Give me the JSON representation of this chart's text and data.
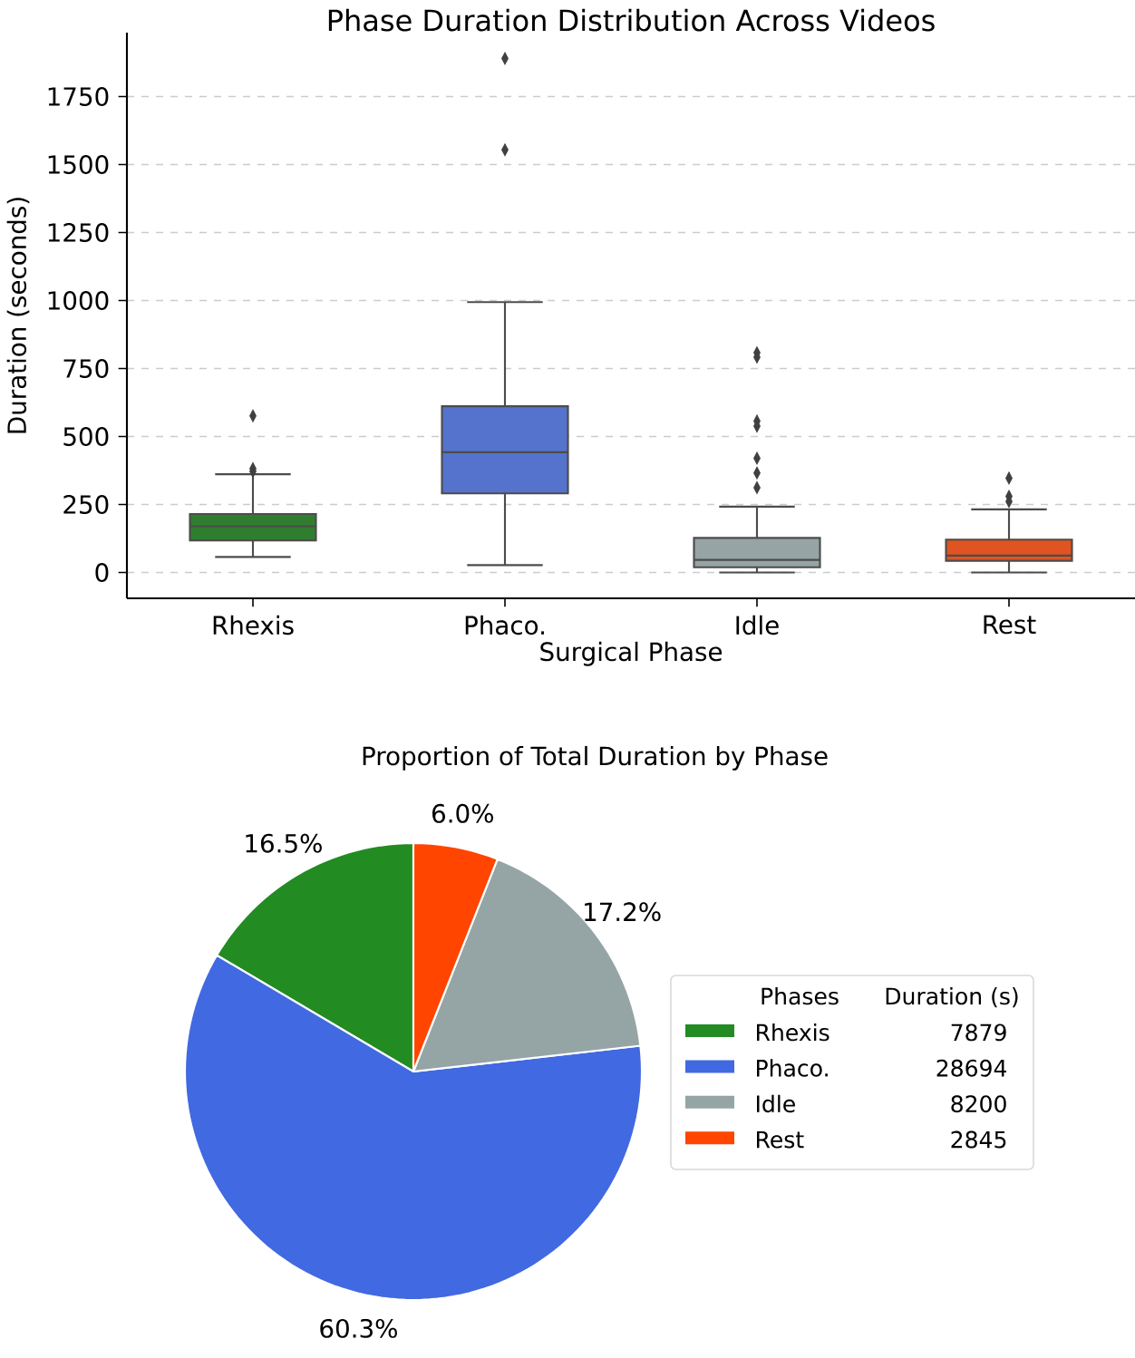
{
  "chart_data": [
    {
      "type": "box",
      "title": "Phase Duration Distribution Across Videos",
      "xlabel": "Surgical Phase",
      "ylabel": "Duration (seconds)",
      "categories": [
        "Rhexis",
        "Phaco.",
        "Idle",
        "Rest"
      ],
      "colors": [
        "#2f7e2f",
        "#5573cd",
        "#97a4a5",
        "#df5420"
      ],
      "boxes": [
        {
          "low": 57,
          "q1": 118,
          "median": 170,
          "q3": 215,
          "high": 361,
          "outliers": [
            576,
            382,
            372
          ]
        },
        {
          "low": 27,
          "q1": 291,
          "median": 442,
          "q3": 611,
          "high": 994,
          "outliers": [
            1890,
            1554
          ]
        },
        {
          "low": 0,
          "q1": 19,
          "median": 46,
          "q3": 127,
          "high": 242,
          "outliers": [
            808,
            792,
            557,
            538,
            420,
            366,
            312
          ]
        },
        {
          "low": 0,
          "q1": 43,
          "median": 62,
          "q3": 121,
          "high": 232,
          "outliers": [
            347,
            280,
            261
          ]
        }
      ],
      "ylim": [
        -95,
        1985
      ],
      "yticks": [
        0,
        250,
        500,
        750,
        1000,
        1250,
        1500,
        1750
      ],
      "grid": "y",
      "marker": "diamond"
    },
    {
      "type": "pie",
      "title": "Proportion of Total Duration by Phase",
      "categories": [
        "Rhexis",
        "Phaco.",
        "Idle",
        "Rest"
      ],
      "values": [
        16.5,
        60.3,
        17.2,
        6.0
      ],
      "colors": [
        "#228b22",
        "#4169e1",
        "#95a5a6",
        "#ff4500"
      ],
      "value_labels": [
        "16.5%",
        "60.3%",
        "17.2%",
        "6.0%"
      ],
      "legend": "right",
      "legend_title": "Phases",
      "annotations": [
        "Duration (s)",
        "7879",
        "28694",
        "8200",
        "2845"
      ]
    }
  ]
}
